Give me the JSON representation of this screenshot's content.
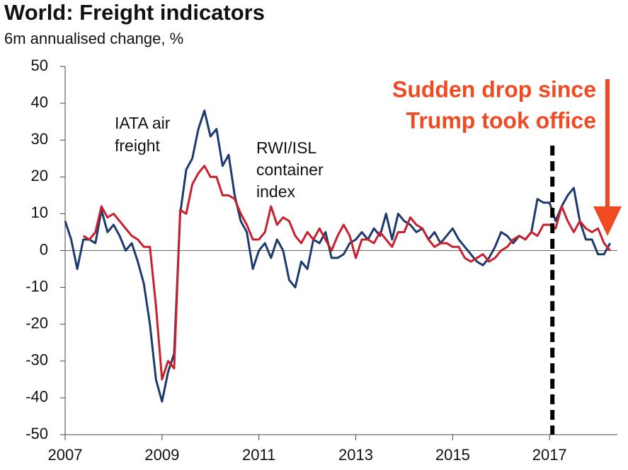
{
  "chart_data": {
    "type": "line",
    "title": "World: Freight indicators",
    "subtitle": "6m annualised change, %",
    "annotations": [
      "IATA air",
      "freight",
      "RWI/ISL",
      "container",
      "index",
      "Sudden drop since",
      "Trump took office"
    ],
    "x": [
      2007,
      2007.125,
      2007.25,
      2007.375,
      2007.5,
      2007.625,
      2007.75,
      2007.875,
      2008,
      2008.125,
      2008.25,
      2008.375,
      2008.5,
      2008.625,
      2008.75,
      2008.875,
      2009,
      2009.125,
      2009.25,
      2009.375,
      2009.5,
      2009.625,
      2009.75,
      2009.875,
      2010,
      2010.125,
      2010.25,
      2010.375,
      2010.5,
      2010.625,
      2010.75,
      2010.875,
      2011,
      2011.125,
      2011.25,
      2011.375,
      2011.5,
      2011.625,
      2011.75,
      2011.875,
      2012,
      2012.125,
      2012.25,
      2012.375,
      2012.5,
      2012.625,
      2012.75,
      2012.875,
      2013,
      2013.125,
      2013.25,
      2013.375,
      2013.5,
      2013.625,
      2013.75,
      2013.875,
      2014,
      2014.125,
      2014.25,
      2014.375,
      2014.5,
      2014.625,
      2014.75,
      2014.875,
      2015,
      2015.125,
      2015.25,
      2015.375,
      2015.5,
      2015.625,
      2015.75,
      2015.875,
      2016,
      2016.125,
      2016.25,
      2016.375,
      2016.5,
      2016.625,
      2016.75,
      2016.875,
      2017,
      2017.125,
      2017.25,
      2017.375,
      2017.5,
      2017.625,
      2017.75,
      2017.875,
      2018,
      2018.125,
      2018.25
    ],
    "series": [
      {
        "color": "#1c3a6e",
        "values": [
          8,
          3,
          -5,
          3,
          3,
          2,
          11,
          5,
          7,
          4,
          0,
          2,
          -3,
          -9,
          -20,
          -35,
          -41,
          -33,
          -28,
          10,
          22,
          25,
          33,
          38,
          31,
          33,
          23,
          26,
          15,
          8,
          5,
          -5,
          0,
          2,
          -2,
          3,
          0,
          -8,
          -10,
          -3,
          -5,
          3,
          2,
          5,
          -2,
          -2,
          -1,
          2,
          3,
          5,
          3,
          6,
          4,
          10,
          3,
          10,
          8,
          7,
          5,
          6,
          3,
          5,
          2,
          4,
          6,
          3,
          1,
          -1,
          -3,
          -4,
          -2,
          1,
          5,
          4,
          2,
          4,
          3,
          5,
          14,
          13,
          13,
          8,
          12,
          15,
          17,
          8,
          3,
          3,
          -1,
          -1,
          2
        ]
      },
      {
        "color": "#c8202e",
        "values": [
          null,
          null,
          null,
          4,
          3,
          5,
          12,
          9,
          10,
          8,
          6,
          4,
          3,
          1,
          1,
          -15,
          -35,
          -30,
          -32,
          11,
          10,
          18,
          21,
          23,
          20,
          20,
          15,
          15,
          14,
          10,
          7,
          3,
          3,
          5,
          12,
          7,
          9,
          8,
          4,
          2,
          5,
          3,
          6,
          3,
          0,
          4,
          7,
          4,
          -2,
          3,
          3,
          2,
          5,
          3,
          1,
          5,
          5,
          9,
          7,
          6,
          3,
          1,
          2,
          2,
          1,
          1,
          -2,
          -3,
          -2,
          -1,
          -3,
          -2,
          0,
          1,
          3,
          4,
          3,
          5,
          4,
          7,
          7,
          6,
          12,
          8,
          5,
          8,
          6,
          5,
          6,
          2,
          0
        ]
      }
    ],
    "xlim": [
      2007,
      2018.4
    ],
    "xticks": [
      2007,
      2009,
      2011,
      2013,
      2015,
      2017
    ],
    "ylim": [
      -50,
      50
    ],
    "yticks": [
      -50,
      -40,
      -30,
      -20,
      -10,
      0,
      10,
      20,
      30,
      40,
      50
    ]
  }
}
